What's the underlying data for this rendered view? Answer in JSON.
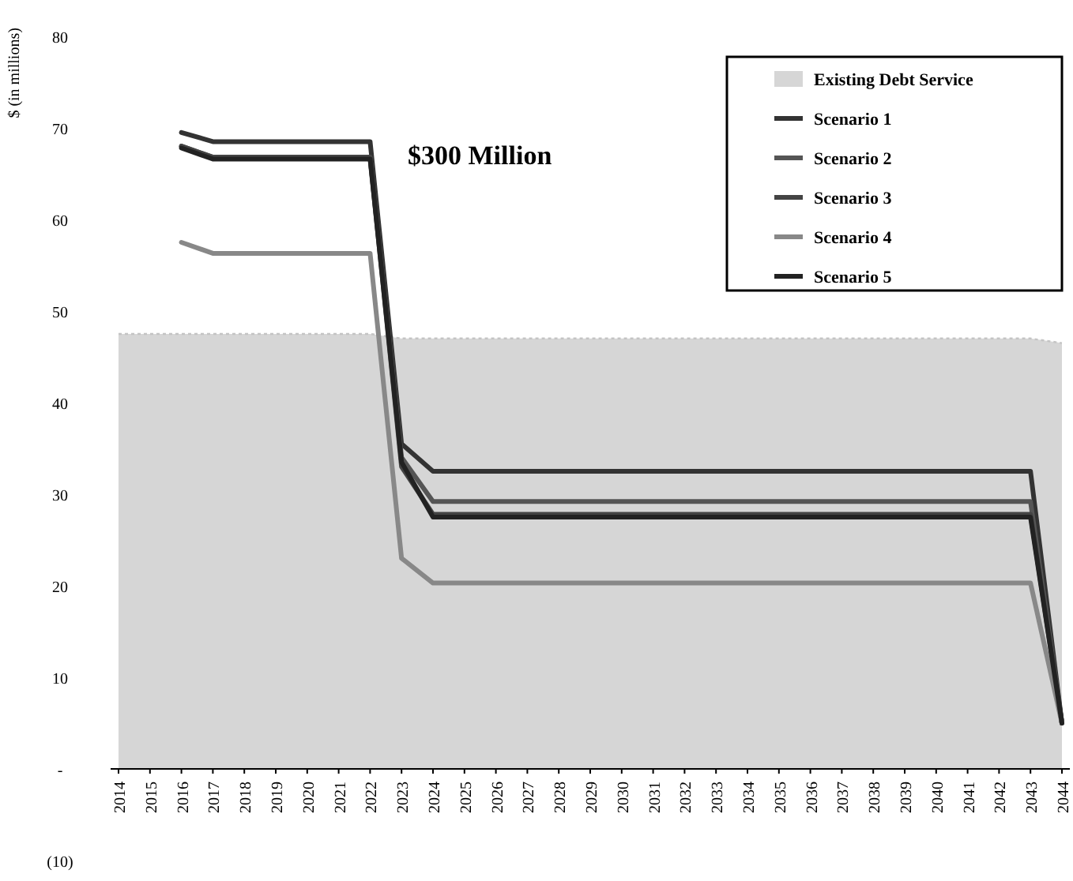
{
  "chart_data": {
    "type": "line",
    "ylabel": "$ (in millions)",
    "annotations": [
      "$300 Million"
    ],
    "categories": [
      "2014",
      "2015",
      "2016",
      "2017",
      "2018",
      "2019",
      "2020",
      "2021",
      "2022",
      "2023",
      "2024",
      "2025",
      "2026",
      "2027",
      "2028",
      "2029",
      "2030",
      "2031",
      "2032",
      "2033",
      "2034",
      "2035",
      "2036",
      "2037",
      "2038",
      "2039",
      "2040",
      "2041",
      "2042",
      "2043",
      "2044"
    ],
    "ylim": [
      -10,
      80
    ],
    "yticks": [
      {
        "value": -10,
        "label": "(10)"
      },
      {
        "value": 0,
        "label": "-"
      },
      10,
      20,
      30,
      40,
      50,
      60,
      70,
      80
    ],
    "grid": false,
    "legend": "top right",
    "series": [
      {
        "name": "Existing Debt Service",
        "type": "area",
        "color": "#c4c4c4",
        "values": [
          47.5,
          47.5,
          47.5,
          47.5,
          47.5,
          47.5,
          47.5,
          47.5,
          47.5,
          47,
          47,
          47,
          47,
          47,
          47,
          47,
          47,
          47,
          47,
          47,
          47,
          47,
          47,
          47,
          47,
          47,
          47,
          47,
          47,
          47,
          46.5
        ]
      },
      {
        "name": "Scenario 1",
        "color": "#333333",
        "values": [
          null,
          null,
          69.5,
          68.5,
          68.5,
          68.5,
          68.5,
          68.5,
          68.5,
          35.5,
          32.5,
          32.5,
          32.5,
          32.5,
          32.5,
          32.5,
          32.5,
          32.5,
          32.5,
          32.5,
          32.5,
          32.5,
          32.5,
          32.5,
          32.5,
          32.5,
          32.5,
          32.5,
          32.5,
          32.5,
          5
        ]
      },
      {
        "name": "Scenario 2",
        "color": "#555555",
        "values": [
          null,
          null,
          68,
          66.8,
          66.8,
          66.8,
          66.8,
          66.8,
          66.8,
          34,
          29.2,
          29.2,
          29.2,
          29.2,
          29.2,
          29.2,
          29.2,
          29.2,
          29.2,
          29.2,
          29.2,
          29.2,
          29.2,
          29.2,
          29.2,
          29.2,
          29.2,
          29.2,
          29.2,
          29.2,
          5
        ]
      },
      {
        "name": "Scenario 3",
        "color": "#444444",
        "values": [
          null,
          null,
          68,
          66.8,
          66.8,
          66.8,
          66.8,
          66.8,
          66.8,
          33,
          27.8,
          27.8,
          27.8,
          27.8,
          27.8,
          27.8,
          27.8,
          27.8,
          27.8,
          27.8,
          27.8,
          27.8,
          27.8,
          27.8,
          27.8,
          27.8,
          27.8,
          27.8,
          27.8,
          27.8,
          5
        ]
      },
      {
        "name": "Scenario 4",
        "color": "#888888",
        "values": [
          null,
          null,
          57.5,
          56.3,
          56.3,
          56.3,
          56.3,
          56.3,
          56.3,
          23,
          20.3,
          20.3,
          20.3,
          20.3,
          20.3,
          20.3,
          20.3,
          20.3,
          20.3,
          20.3,
          20.3,
          20.3,
          20.3,
          20.3,
          20.3,
          20.3,
          20.3,
          20.3,
          20.3,
          20.3,
          5
        ]
      },
      {
        "name": "Scenario 5",
        "color": "#222222",
        "values": [
          null,
          null,
          67.8,
          66.6,
          66.6,
          66.6,
          66.6,
          66.6,
          66.6,
          33.5,
          27.5,
          27.5,
          27.5,
          27.5,
          27.5,
          27.5,
          27.5,
          27.5,
          27.5,
          27.5,
          27.5,
          27.5,
          27.5,
          27.5,
          27.5,
          27.5,
          27.5,
          27.5,
          27.5,
          27.5,
          5
        ]
      }
    ]
  }
}
